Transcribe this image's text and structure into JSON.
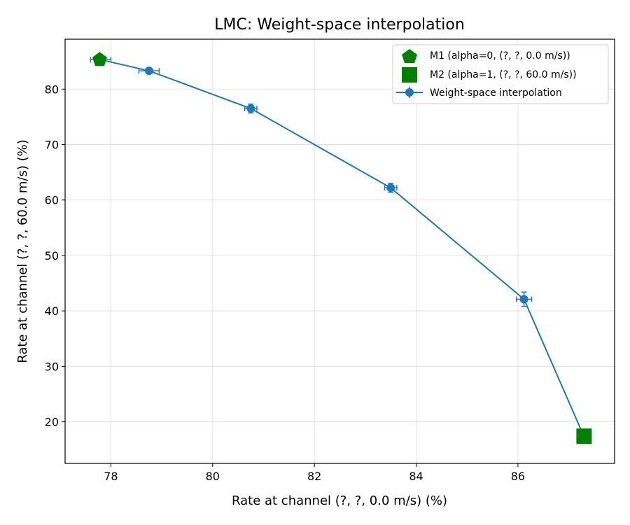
{
  "chart_data": {
    "type": "scatter",
    "title": "LMC: Weight-space interpolation",
    "xlabel": "Rate at channel (?, ?, 0.0 m/s) (%)",
    "ylabel": "Rate at channel (?, ?, 60.0 m/s) (%)",
    "xlim": [
      77.1,
      87.9
    ],
    "ylim": [
      12.5,
      89.0
    ],
    "xticks": [
      78,
      80,
      82,
      84,
      86
    ],
    "yticks": [
      20,
      30,
      40,
      50,
      60,
      70,
      80
    ],
    "grid": true,
    "legend_position": "top-right",
    "colors": {
      "line": "#1f77b4",
      "endpoint": "#008000"
    },
    "series": [
      {
        "name": "Weight-space interpolation",
        "style": "line-errorbar",
        "points": [
          {
            "x": 77.8,
            "y": 85.3,
            "xerr": 0.2,
            "yerr": 0.4
          },
          {
            "x": 78.75,
            "y": 83.3,
            "xerr": 0.2,
            "yerr": 0.4
          },
          {
            "x": 80.75,
            "y": 76.5,
            "xerr": 0.12,
            "yerr": 0.8
          },
          {
            "x": 83.5,
            "y": 62.2,
            "xerr": 0.12,
            "yerr": 0.8
          },
          {
            "x": 86.12,
            "y": 42.1,
            "xerr": 0.15,
            "yerr": 1.3
          },
          {
            "x": 87.3,
            "y": 17.3,
            "xerr": 0.1,
            "yerr": 1.1
          }
        ]
      },
      {
        "name": "M1 (alpha=0, (?, ?, 0.0 m/s))",
        "style": "pentagon",
        "points": [
          {
            "x": 77.78,
            "y": 85.3
          }
        ]
      },
      {
        "name": "M2 (alpha=1, (?, ?, 60.0 m/s))",
        "style": "square",
        "points": [
          {
            "x": 87.3,
            "y": 17.4
          }
        ]
      }
    ]
  }
}
